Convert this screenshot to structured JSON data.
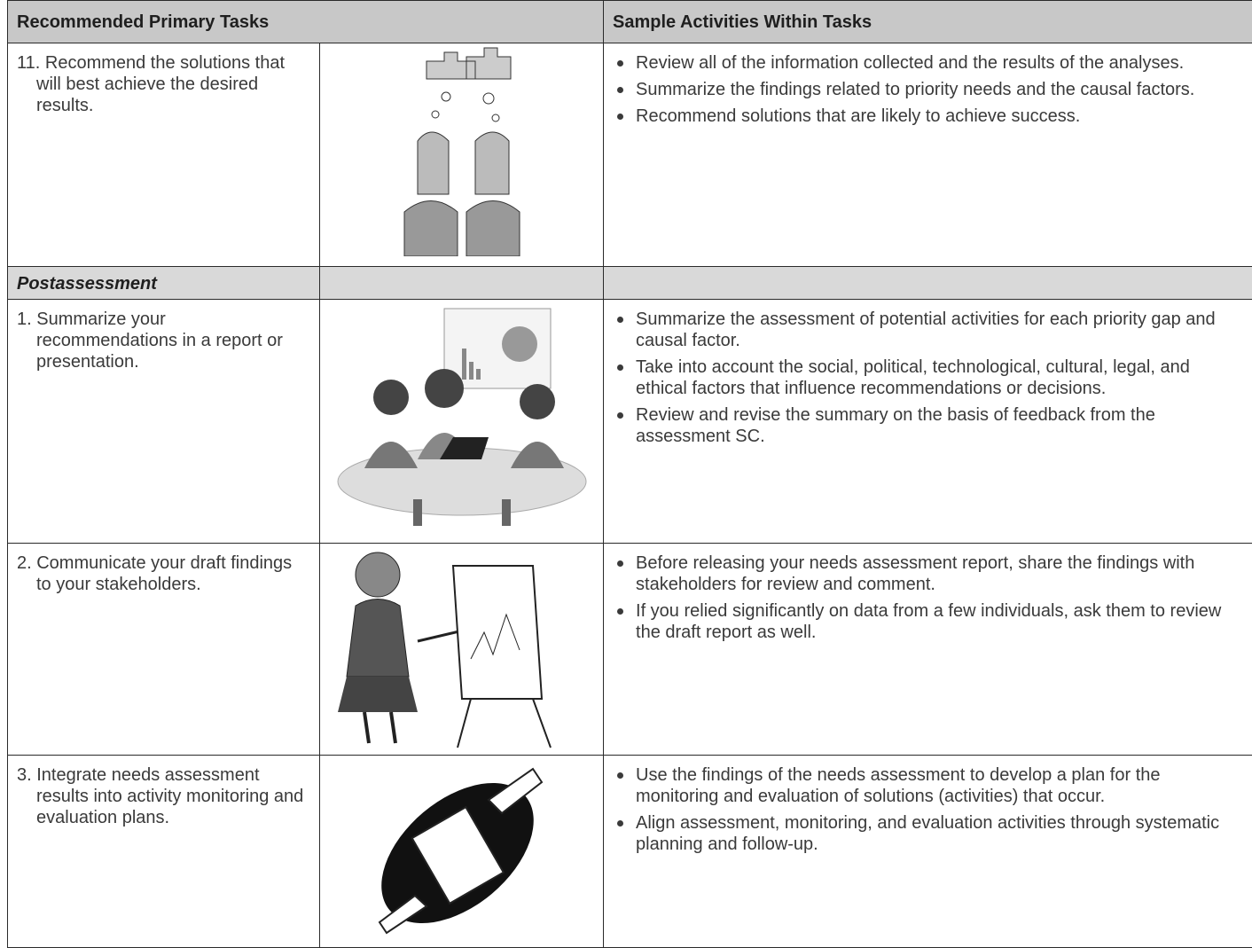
{
  "table": {
    "header": [
      "Recommended Primary Tasks",
      "Sample Activities Within Tasks"
    ],
    "rows": [
      {
        "task": "11. Recommend the solutions that will best achieve the desired results.",
        "activities": [
          "Review all of the information collected and the results of the analyses.",
          "Summarize the findings related to priority needs and the causal factors.",
          "Recommend solutions that are likely to achieve success."
        ]
      },
      {
        "section": "Postassessment"
      },
      {
        "task": "1. Summarize your recommendations in a report or presentation.",
        "activities": [
          "Summarize the assessment of potential activities for each priority gap and causal factor.",
          "Take into account the social, political, technological, cultural, legal, and ethical factors that influence recommendations or decisions.",
          "Review and revise the summary on the basis of feedback from the assessment SC."
        ]
      },
      {
        "task": "2. Communicate your draft findings to your stakeholders.",
        "activities": [
          "Before releasing your needs assessment report, share the findings with stakeholders for review and comment.",
          "If you relied significantly on data from a few individuals, ask them to review the draft report as well."
        ]
      },
      {
        "task": "3. Integrate needs assessment results into activity monitoring and evaluation plans.",
        "activities": [
          "Use the findings of the needs assessment to develop a plan for the monitoring and evaluation of solutions (activities) that occur.",
          "Align assessment, monitoring, and evaluation activities through systematic planning and follow-up."
        ]
      }
    ]
  }
}
